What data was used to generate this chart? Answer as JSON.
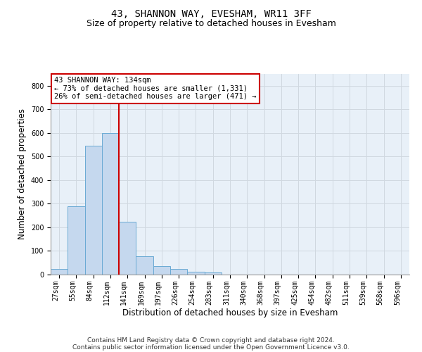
{
  "title": "43, SHANNON WAY, EVESHAM, WR11 3FF",
  "subtitle": "Size of property relative to detached houses in Evesham",
  "xlabel": "Distribution of detached houses by size in Evesham",
  "ylabel": "Number of detached properties",
  "footer_line1": "Contains HM Land Registry data © Crown copyright and database right 2024.",
  "footer_line2": "Contains public sector information licensed under the Open Government Licence v3.0.",
  "bar_labels": [
    "27sqm",
    "55sqm",
    "84sqm",
    "112sqm",
    "141sqm",
    "169sqm",
    "197sqm",
    "226sqm",
    "254sqm",
    "283sqm",
    "311sqm",
    "340sqm",
    "368sqm",
    "397sqm",
    "425sqm",
    "454sqm",
    "482sqm",
    "511sqm",
    "539sqm",
    "568sqm",
    "596sqm"
  ],
  "bar_values": [
    25,
    288,
    545,
    600,
    225,
    78,
    36,
    25,
    12,
    8,
    0,
    0,
    0,
    0,
    0,
    0,
    0,
    0,
    0,
    0,
    0
  ],
  "bar_color": "#c5d8ee",
  "bar_edge_color": "#6aaad4",
  "vline_x": 4,
  "vline_color": "#cc0000",
  "annotation_line1": "43 SHANNON WAY: 134sqm",
  "annotation_line2": "← 73% of detached houses are smaller (1,331)",
  "annotation_line3": "26% of semi-detached houses are larger (471) →",
  "annotation_box_color": "#ffffff",
  "annotation_box_edge_color": "#cc0000",
  "ylim": [
    0,
    850
  ],
  "yticks": [
    0,
    100,
    200,
    300,
    400,
    500,
    600,
    700,
    800
  ],
  "background_color": "#ffffff",
  "plot_bg_color": "#e8f0f8",
  "grid_color": "#d0d8e0",
  "title_fontsize": 10,
  "subtitle_fontsize": 9,
  "axis_label_fontsize": 8.5,
  "tick_fontsize": 7,
  "annotation_fontsize": 7.5,
  "footer_fontsize": 6.5
}
